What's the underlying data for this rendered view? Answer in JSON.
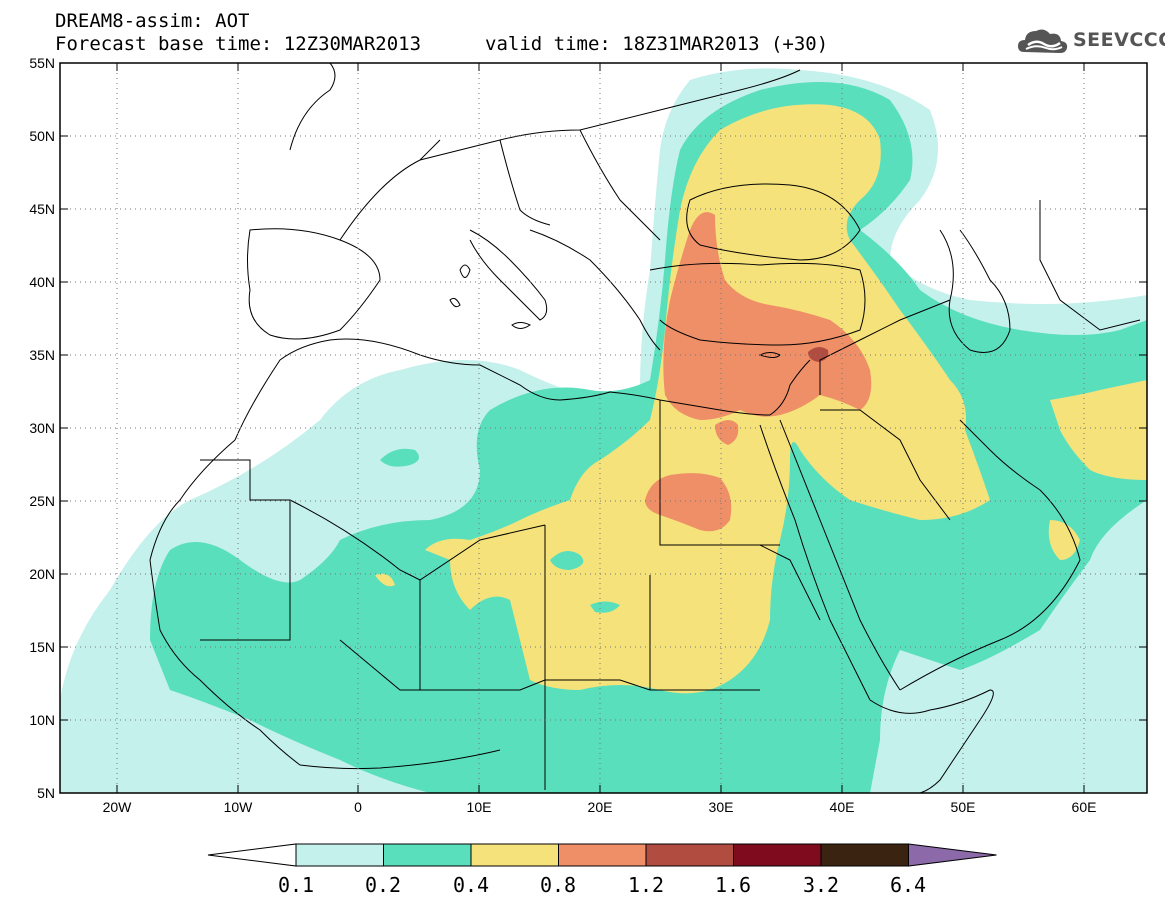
{
  "title": {
    "line1": "DREAM8-assim: AOT",
    "line2": "Forecast base time: 12Z30MAR2013",
    "line3": "valid time: 18Z31MAR2013 (+30)"
  },
  "logo": {
    "text": "SEEVCCC",
    "icon": "cloud-logo-icon"
  },
  "map": {
    "lat_labels": [
      "55N",
      "50N",
      "45N",
      "40N",
      "35N",
      "30N",
      "25N",
      "20N",
      "15N",
      "10N",
      "5N"
    ],
    "lon_labels": [
      "20W",
      "10W",
      "0",
      "10E",
      "20E",
      "30E",
      "40E",
      "50E",
      "60E"
    ],
    "lon_range": [
      -25,
      65
    ],
    "lat_range": [
      5,
      55
    ],
    "grid": true
  },
  "colorbar": {
    "labels": [
      "0.1",
      "0.2",
      "0.4",
      "0.8",
      "1.2",
      "1.6",
      "3.2",
      "6.4"
    ],
    "colors": [
      "#ffffff",
      "#c4f1ec",
      "#5adfbd",
      "#f5e27a",
      "#ee8f68",
      "#b14d40",
      "#7e0c1e",
      "#3a2411",
      "#8c6aaa"
    ]
  },
  "colors": {
    "aot_0_1": "#c4f1ec",
    "aot_0_2": "#5adfbd",
    "aot_0_4": "#f5e27a",
    "aot_0_8": "#ee8f68",
    "aot_1_2": "#b14d40"
  }
}
